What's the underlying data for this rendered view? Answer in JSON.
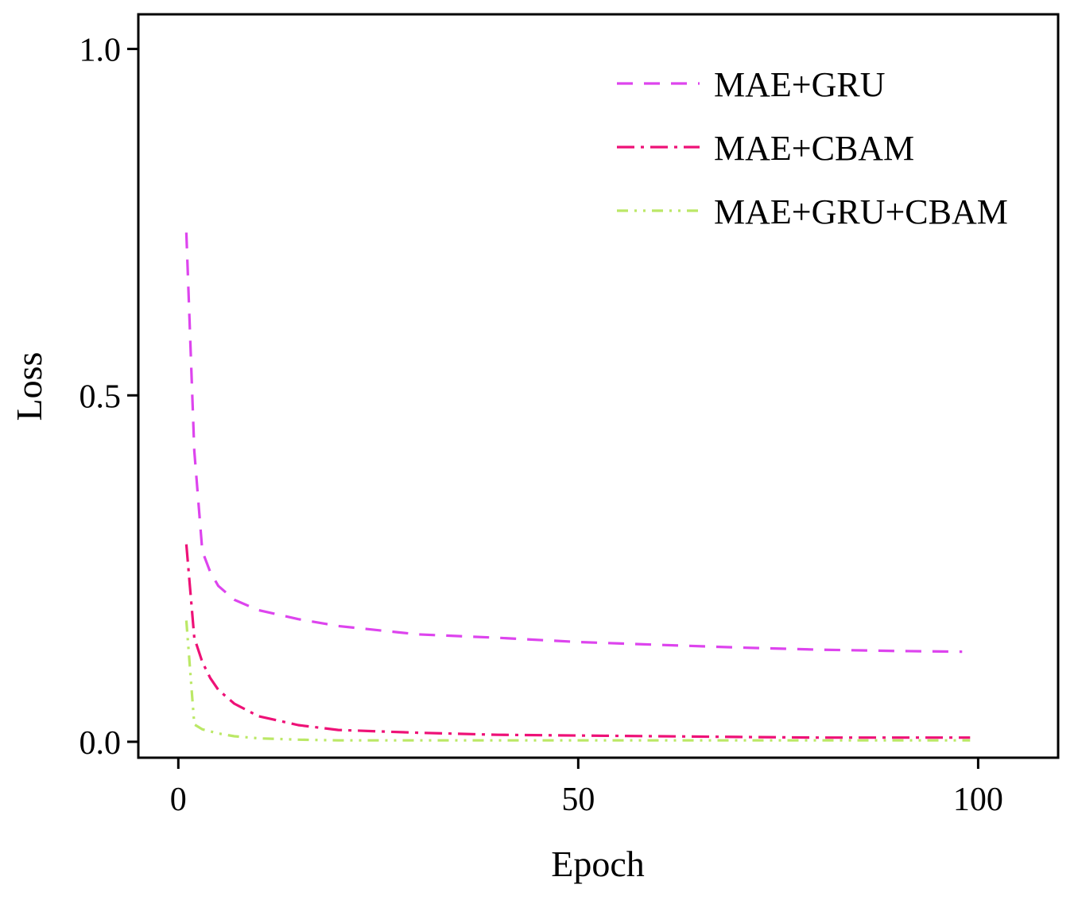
{
  "chart_data": {
    "type": "line",
    "title": "",
    "xlabel": "Epoch",
    "ylabel": "Loss",
    "xlim": [
      -5,
      110
    ],
    "ylim": [
      -0.023,
      1.05
    ],
    "xticks": [
      0,
      50,
      100
    ],
    "xtick_labels": [
      "0",
      "50",
      "100"
    ],
    "yticks": [
      0.0,
      0.5,
      1.0
    ],
    "ytick_labels": [
      "0.0",
      "0.5",
      "1.0"
    ],
    "grid": false,
    "legend": "top-right",
    "series": [
      {
        "name": "MAE+GRU",
        "color": "#dd44ee",
        "dash": "dashed",
        "x": [
          1,
          2,
          3,
          4,
          5,
          7,
          10,
          15,
          20,
          30,
          40,
          50,
          60,
          70,
          80,
          90,
          98
        ],
        "y": [
          0.735,
          0.42,
          0.275,
          0.245,
          0.225,
          0.205,
          0.19,
          0.177,
          0.167,
          0.155,
          0.15,
          0.144,
          0.14,
          0.136,
          0.133,
          0.131,
          0.13
        ]
      },
      {
        "name": "MAE+CBAM",
        "color": "#ee1177",
        "dash": "dash-dot",
        "x": [
          1,
          2,
          3,
          4,
          5,
          7,
          10,
          15,
          20,
          30,
          40,
          50,
          60,
          70,
          80,
          90,
          99
        ],
        "y": [
          0.285,
          0.15,
          0.115,
          0.092,
          0.075,
          0.055,
          0.037,
          0.024,
          0.017,
          0.013,
          0.01,
          0.009,
          0.008,
          0.007,
          0.006,
          0.006,
          0.006
        ]
      },
      {
        "name": "MAE+GRU+CBAM",
        "color": "#bbe866",
        "dash": "dash-dot-dot",
        "x": [
          1,
          2,
          3,
          5,
          7,
          10,
          15,
          20,
          30,
          40,
          50,
          60,
          70,
          80,
          90,
          99
        ],
        "y": [
          0.175,
          0.025,
          0.018,
          0.012,
          0.008,
          0.005,
          0.003,
          0.002,
          0.002,
          0.002,
          0.002,
          0.002,
          0.002,
          0.002,
          0.002,
          0.002
        ]
      }
    ]
  }
}
